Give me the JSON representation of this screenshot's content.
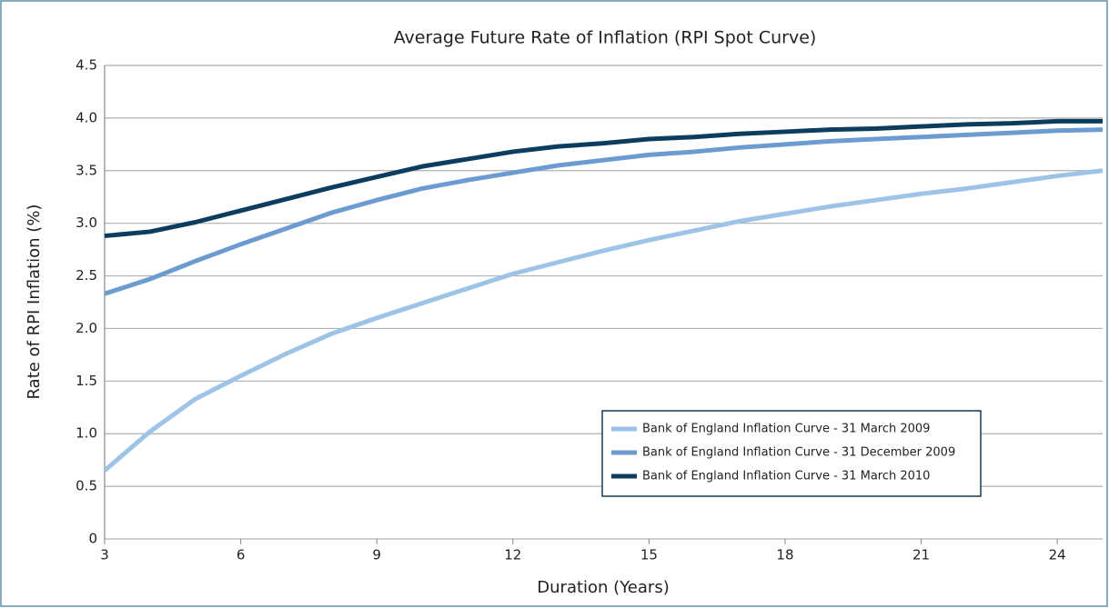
{
  "chart_data": {
    "type": "line",
    "title": "Average Future Rate of Inflation (RPI Spot Curve)",
    "x_label": "Duration (Years)",
    "y_label": "Rate of RPI Inflation (%)",
    "x": [
      3,
      4,
      5,
      6,
      7,
      8,
      9,
      10,
      11,
      12,
      13,
      14,
      15,
      16,
      17,
      18,
      19,
      20,
      21,
      22,
      23,
      24,
      25
    ],
    "series": [
      {
        "name": "Bank of England Inflation Curve - 31 March 2009",
        "color": "#9dc3e6",
        "values": [
          0.65,
          1.02,
          1.33,
          1.55,
          1.76,
          1.95,
          2.1,
          2.24,
          2.38,
          2.52,
          2.63,
          2.74,
          2.84,
          2.93,
          3.02,
          3.09,
          3.16,
          3.22,
          3.28,
          3.33,
          3.39,
          3.45,
          3.5
        ]
      },
      {
        "name": "Bank of England Inflation Curve - 31 December 2009",
        "color": "#6b9bd1",
        "values": [
          2.33,
          2.47,
          2.64,
          2.8,
          2.95,
          3.1,
          3.22,
          3.33,
          3.41,
          3.48,
          3.55,
          3.6,
          3.65,
          3.68,
          3.72,
          3.75,
          3.78,
          3.8,
          3.82,
          3.84,
          3.86,
          3.88,
          3.89
        ]
      },
      {
        "name": "Bank of England Inflation Curve - 31 March 2010",
        "color": "#0d3d5e",
        "values": [
          2.88,
          2.92,
          3.01,
          3.12,
          3.23,
          3.34,
          3.44,
          3.54,
          3.61,
          3.68,
          3.73,
          3.76,
          3.8,
          3.82,
          3.85,
          3.87,
          3.89,
          3.9,
          3.92,
          3.94,
          3.95,
          3.97,
          3.97
        ]
      }
    ],
    "xlim": [
      3,
      25
    ],
    "xticks": [
      3,
      6,
      9,
      12,
      15,
      18,
      21,
      24
    ],
    "ylim": [
      0,
      4.5
    ],
    "yticks": [
      0,
      0.5,
      {
        "value": 1,
        "label": "1.0"
      },
      1.5,
      {
        "value": 2,
        "label": "2.0"
      },
      2.5,
      {
        "value": 3,
        "label": "3.0"
      },
      3.5,
      {
        "value": 4,
        "label": "4.0"
      },
      4.5
    ],
    "grid": true,
    "legend_position": "lower right"
  }
}
